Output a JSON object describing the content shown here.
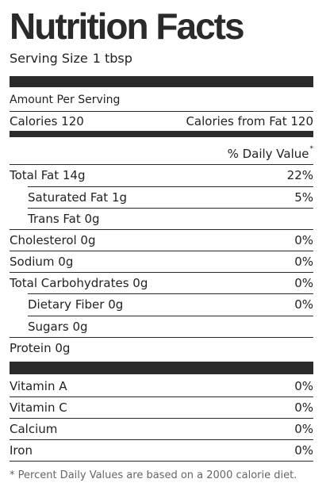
{
  "title": "Nutrition Facts",
  "serving": {
    "label": "Serving Size",
    "value": "1 tbsp"
  },
  "amount_per_serving": "Amount Per Serving",
  "calories": {
    "label": "Calories 120",
    "from_fat": "Calories from Fat 120"
  },
  "daily_value_header": "% Daily Value",
  "daily_value_marker": "*",
  "nutrients": [
    {
      "label": "Total Fat 14g",
      "dv": "22%"
    },
    {
      "label": "Saturated Fat 1g",
      "dv": "5%"
    },
    {
      "label": "Trans Fat 0g",
      "dv": ""
    },
    {
      "label": "Cholesterol 0g",
      "dv": "0%"
    },
    {
      "label": "Sodium 0g",
      "dv": "0%"
    },
    {
      "label": "Total Carbohydrates 0g",
      "dv": "0%"
    },
    {
      "label": "Dietary Fiber 0g",
      "dv": "0%"
    },
    {
      "label": "Sugars 0g",
      "dv": ""
    },
    {
      "label": "Protein 0g",
      "dv": ""
    }
  ],
  "vitamins": [
    {
      "label": "Vitamin A",
      "dv": "0%"
    },
    {
      "label": "Vitamin C",
      "dv": "0%"
    },
    {
      "label": "Calcium",
      "dv": "0%"
    },
    {
      "label": "Iron",
      "dv": "0%"
    }
  ],
  "footnote": "* Percent Daily Values are based on a 2000 calorie diet."
}
